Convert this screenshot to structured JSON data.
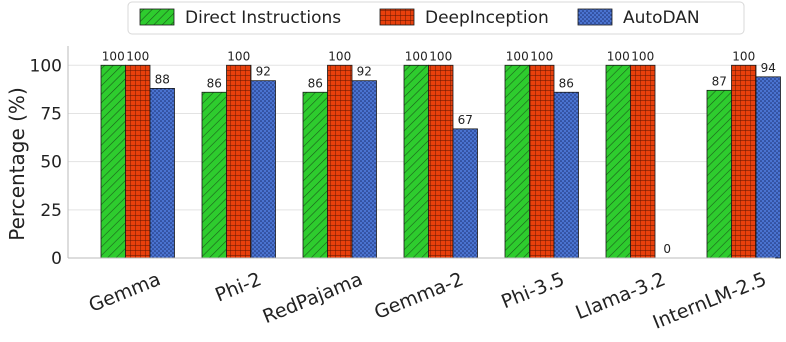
{
  "chart_data": {
    "type": "bar",
    "categories": [
      "Gemma",
      "Phi-2",
      "RedPajama",
      "Gemma-2",
      "Phi-3.5",
      "Llama-3.2",
      "InternLM-2.5"
    ],
    "series": [
      {
        "name": "Direct Instructions",
        "color": "#2ecc2e",
        "pattern": "diagonal-hatch",
        "values": [
          100,
          86,
          86,
          100,
          100,
          100,
          87
        ]
      },
      {
        "name": "DeepInception",
        "color": "#e8400c",
        "pattern": "grid-hatch",
        "values": [
          100,
          100,
          100,
          100,
          100,
          100,
          100
        ]
      },
      {
        "name": "AutoDAN",
        "color": "#4a73d0",
        "pattern": "dot-hatch",
        "values": [
          88,
          92,
          92,
          67,
          86,
          0,
          94
        ]
      }
    ],
    "title": "",
    "xlabel": "",
    "ylabel": "Percentage (%)",
    "ylim": [
      0,
      110
    ],
    "yticks": [
      0,
      25,
      50,
      75,
      100
    ],
    "grid": true,
    "legend": "top-center"
  }
}
